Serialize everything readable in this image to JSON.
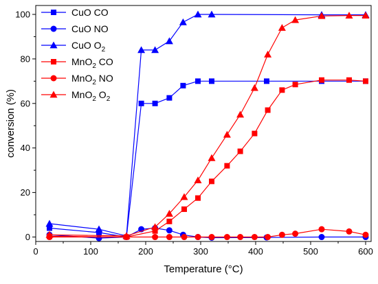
{
  "chart_data": {
    "type": "line",
    "xlabel": "Temperature (°C)",
    "ylabel": "conversion (%)",
    "xlim": [
      0,
      610
    ],
    "ylim": [
      -2,
      104
    ],
    "xticks": [
      0,
      100,
      200,
      300,
      400,
      500,
      600
    ],
    "yticks": [
      0,
      20,
      40,
      60,
      80,
      100
    ],
    "grid": false,
    "legend": "top-left",
    "series": [
      {
        "name": "CuO CO",
        "name_parts": [
          "CuO CO"
        ],
        "color": "#0000ff",
        "marker": "square",
        "points": [
          [
            25,
            4
          ],
          [
            115,
            2
          ],
          [
            165,
            0
          ],
          [
            192,
            60
          ],
          [
            217,
            60
          ],
          [
            243,
            62.5
          ],
          [
            268,
            68
          ],
          [
            295,
            70
          ],
          [
            320,
            70
          ],
          [
            420,
            70
          ],
          [
            520,
            70
          ],
          [
            600,
            70
          ]
        ]
      },
      {
        "name": "CuO NO",
        "name_parts": [
          "CuO NO"
        ],
        "color": "#0000ff",
        "marker": "circle",
        "points": [
          [
            25,
            1
          ],
          [
            115,
            -0.5
          ],
          [
            165,
            0
          ],
          [
            192,
            3.5
          ],
          [
            217,
            4
          ],
          [
            243,
            3
          ],
          [
            268,
            1
          ],
          [
            295,
            0
          ],
          [
            320,
            -0.3
          ],
          [
            420,
            -0.2
          ],
          [
            520,
            0
          ],
          [
            600,
            0
          ]
        ]
      },
      {
        "name": "CuO O2",
        "name_parts": [
          "CuO O",
          "2"
        ],
        "color": "#0000ff",
        "marker": "triangle",
        "points": [
          [
            25,
            6
          ],
          [
            115,
            3.5
          ],
          [
            165,
            0.5
          ],
          [
            192,
            84
          ],
          [
            217,
            84
          ],
          [
            243,
            88
          ],
          [
            268,
            96.5
          ],
          [
            295,
            100
          ],
          [
            320,
            100
          ],
          [
            520,
            99.8
          ],
          [
            600,
            99.8
          ]
        ]
      },
      {
        "name": "MnO2 CO",
        "name_parts": [
          "MnO",
          "2",
          " CO"
        ],
        "color": "#ff0000",
        "marker": "square",
        "points": [
          [
            25,
            0.3
          ],
          [
            165,
            0
          ],
          [
            217,
            2.7
          ],
          [
            243,
            7
          ],
          [
            270,
            12.5
          ],
          [
            295,
            17.5
          ],
          [
            320,
            25
          ],
          [
            348,
            32
          ],
          [
            372,
            38.5
          ],
          [
            398,
            46.5
          ],
          [
            422,
            57
          ],
          [
            448,
            66
          ],
          [
            472,
            68.5
          ],
          [
            520,
            70.5
          ],
          [
            570,
            70.5
          ],
          [
            600,
            70
          ]
        ]
      },
      {
        "name": "MnO2 NO",
        "name_parts": [
          "MnO",
          "2",
          " NO"
        ],
        "color": "#ff0000",
        "marker": "circle",
        "points": [
          [
            25,
            0
          ],
          [
            165,
            0
          ],
          [
            217,
            0
          ],
          [
            243,
            0
          ],
          [
            270,
            0
          ],
          [
            295,
            0
          ],
          [
            320,
            0
          ],
          [
            348,
            0
          ],
          [
            372,
            0
          ],
          [
            398,
            0
          ],
          [
            422,
            0
          ],
          [
            448,
            1
          ],
          [
            472,
            1.5
          ],
          [
            520,
            3.5
          ],
          [
            570,
            2.5
          ],
          [
            600,
            1
          ]
        ]
      },
      {
        "name": "MnO2 O2",
        "name_parts": [
          "MnO",
          "2",
          " O",
          "2"
        ],
        "color": "#ff0000",
        "marker": "triangle",
        "points": [
          [
            25,
            1
          ],
          [
            165,
            0.5
          ],
          [
            217,
            4.5
          ],
          [
            243,
            10.5
          ],
          [
            270,
            18
          ],
          [
            295,
            25.5
          ],
          [
            320,
            35.5
          ],
          [
            348,
            46
          ],
          [
            372,
            55
          ],
          [
            398,
            67
          ],
          [
            422,
            82
          ],
          [
            448,
            94
          ],
          [
            472,
            97.5
          ],
          [
            520,
            99.3
          ],
          [
            570,
            99.5
          ],
          [
            600,
            99.5
          ]
        ]
      }
    ]
  }
}
